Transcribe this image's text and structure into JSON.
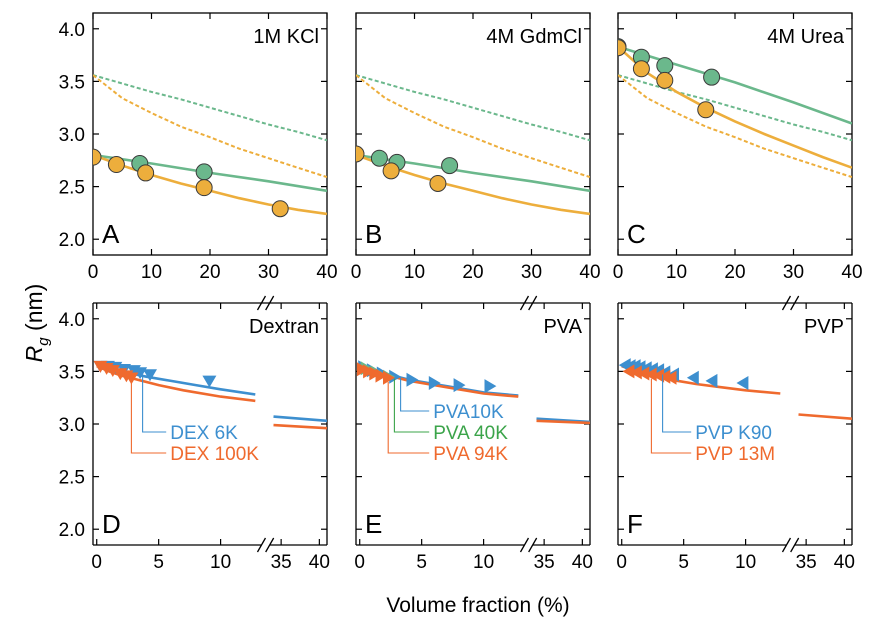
{
  "figure": {
    "shared_ylabel": "R",
    "shared_ylabel_subscript": "g",
    "shared_ylabel_unit": " (nm)",
    "shared_xlabel": "Volume fraction (%)"
  },
  "colors": {
    "green": "#6BB88C",
    "orange": "#EDAE3C",
    "blue": "#3D8FCF",
    "red": "#EF6A2E",
    "legend_green": "#3BA44A"
  },
  "chart_data": [
    {
      "type": "scatter",
      "panel_letter": "A",
      "panel_title": "1M KCl",
      "xlim": [
        0,
        40
      ],
      "ylim": [
        1.85,
        4.15
      ],
      "xticks": [
        "0",
        "10",
        "20",
        "30",
        "40"
      ],
      "xtick_values": [
        0,
        10,
        20,
        30,
        40
      ],
      "yticks": [
        "2.0",
        "2.5",
        "3.0",
        "3.5",
        "4.0"
      ],
      "ytick_values": [
        2.0,
        2.5,
        3.0,
        3.5,
        4.0
      ],
      "series": [
        {
          "color": "green",
          "style": "dashed",
          "kind": "line",
          "x": [
            0,
            5,
            10,
            15,
            20,
            25,
            30,
            35,
            40
          ],
          "y": [
            3.56,
            3.48,
            3.4,
            3.33,
            3.25,
            3.17,
            3.09,
            3.02,
            2.94
          ]
        },
        {
          "color": "orange",
          "style": "dashed",
          "kind": "line",
          "x": [
            0,
            5,
            10,
            15,
            20,
            25,
            30,
            35,
            40
          ],
          "y": [
            3.56,
            3.34,
            3.2,
            3.07,
            2.97,
            2.86,
            2.77,
            2.68,
            2.59
          ]
        },
        {
          "color": "green",
          "style": "solid",
          "kind": "line",
          "x": [
            0,
            10,
            20,
            30,
            40
          ],
          "y": [
            2.8,
            2.72,
            2.63,
            2.55,
            2.46
          ]
        },
        {
          "color": "orange",
          "style": "solid",
          "kind": "line",
          "x": [
            0,
            5,
            10,
            15,
            20,
            25,
            30,
            35,
            40
          ],
          "y": [
            2.8,
            2.7,
            2.61,
            2.53,
            2.46,
            2.39,
            2.33,
            2.28,
            2.24
          ]
        },
        {
          "color": "green",
          "kind": "points",
          "marker": "circle",
          "x": [
            8,
            19
          ],
          "y": [
            2.72,
            2.64
          ]
        },
        {
          "color": "orange",
          "kind": "points",
          "marker": "circle",
          "x": [
            0,
            4,
            9,
            19,
            32
          ],
          "y": [
            2.78,
            2.71,
            2.63,
            2.49,
            2.29
          ]
        }
      ]
    },
    {
      "type": "scatter",
      "panel_letter": "B",
      "panel_title": "4M GdmCl",
      "xlim": [
        0,
        40
      ],
      "ylim": [
        1.85,
        4.15
      ],
      "xticks": [
        "0",
        "10",
        "20",
        "30",
        "40"
      ],
      "xtick_values": [
        0,
        10,
        20,
        30,
        40
      ],
      "yticks": [
        "2.0",
        "2.5",
        "3.0",
        "3.5",
        "4.0"
      ],
      "ytick_values": [
        2.0,
        2.5,
        3.0,
        3.5,
        4.0
      ],
      "series": [
        {
          "color": "green",
          "style": "dashed",
          "kind": "line",
          "x": [
            0,
            5,
            10,
            15,
            20,
            25,
            30,
            35,
            40
          ],
          "y": [
            3.56,
            3.48,
            3.4,
            3.33,
            3.25,
            3.17,
            3.09,
            3.02,
            2.94
          ]
        },
        {
          "color": "orange",
          "style": "dashed",
          "kind": "line",
          "x": [
            0,
            5,
            10,
            15,
            20,
            25,
            30,
            35,
            40
          ],
          "y": [
            3.56,
            3.34,
            3.2,
            3.07,
            2.97,
            2.86,
            2.77,
            2.68,
            2.59
          ]
        },
        {
          "color": "green",
          "style": "solid",
          "kind": "line",
          "x": [
            0,
            10,
            20,
            30,
            40
          ],
          "y": [
            2.8,
            2.72,
            2.63,
            2.55,
            2.46
          ]
        },
        {
          "color": "orange",
          "style": "solid",
          "kind": "line",
          "x": [
            0,
            5,
            10,
            15,
            20,
            25,
            30,
            35,
            40
          ],
          "y": [
            2.8,
            2.7,
            2.61,
            2.53,
            2.46,
            2.39,
            2.33,
            2.28,
            2.24
          ]
        },
        {
          "color": "green",
          "kind": "points",
          "marker": "circle",
          "x": [
            4,
            7,
            16
          ],
          "y": [
            2.77,
            2.73,
            2.7
          ]
        },
        {
          "color": "orange",
          "kind": "points",
          "marker": "circle",
          "x": [
            0,
            6,
            14
          ],
          "y": [
            2.81,
            2.65,
            2.53
          ]
        }
      ]
    },
    {
      "type": "scatter",
      "panel_letter": "C",
      "panel_title": "4M Urea",
      "xlim": [
        0,
        40
      ],
      "ylim": [
        1.85,
        4.15
      ],
      "xticks": [
        "0",
        "10",
        "20",
        "30",
        "40"
      ],
      "xtick_values": [
        0,
        10,
        20,
        30,
        40
      ],
      "yticks": [
        "2.0",
        "2.5",
        "3.0",
        "3.5",
        "4.0"
      ],
      "ytick_values": [
        2.0,
        2.5,
        3.0,
        3.5,
        4.0
      ],
      "series": [
        {
          "color": "green",
          "style": "dashed",
          "kind": "line",
          "x": [
            0,
            5,
            10,
            15,
            20,
            25,
            30,
            35,
            40
          ],
          "y": [
            3.56,
            3.48,
            3.4,
            3.33,
            3.25,
            3.17,
            3.09,
            3.02,
            2.94
          ]
        },
        {
          "color": "orange",
          "style": "dashed",
          "kind": "line",
          "x": [
            0,
            5,
            10,
            15,
            20,
            25,
            30,
            35,
            40
          ],
          "y": [
            3.56,
            3.34,
            3.2,
            3.07,
            2.97,
            2.86,
            2.77,
            2.68,
            2.59
          ]
        },
        {
          "color": "green",
          "style": "solid",
          "kind": "line",
          "x": [
            0,
            10,
            20,
            30,
            40
          ],
          "y": [
            3.83,
            3.66,
            3.49,
            3.3,
            3.1
          ]
        },
        {
          "color": "orange",
          "style": "solid",
          "kind": "line",
          "x": [
            0,
            5,
            10,
            15,
            20,
            25,
            30,
            35,
            40
          ],
          "y": [
            3.83,
            3.58,
            3.4,
            3.25,
            3.12,
            3.0,
            2.89,
            2.78,
            2.68
          ]
        },
        {
          "color": "green",
          "kind": "points",
          "marker": "circle",
          "x": [
            0,
            4,
            8,
            16
          ],
          "y": [
            3.83,
            3.73,
            3.65,
            3.54
          ]
        },
        {
          "color": "orange",
          "kind": "points",
          "marker": "circle",
          "x": [
            0,
            4,
            8,
            15
          ],
          "y": [
            3.82,
            3.62,
            3.51,
            3.23
          ]
        }
      ]
    },
    {
      "type": "scatter",
      "panel_letter": "D",
      "panel_title": "Dextran",
      "broken_axis": true,
      "ylim": [
        1.85,
        4.15
      ],
      "left_segment": {
        "xlim": [
          -0.3,
          13.3
        ]
      },
      "right_segment": {
        "xlim": [
          33.5,
          41
        ]
      },
      "xticks": [
        "0",
        "5",
        "10",
        "35",
        "40"
      ],
      "xtick_values": [
        0,
        5,
        10,
        35,
        40
      ],
      "yticks": [
        "2.0",
        "2.5",
        "3.0",
        "3.5",
        "4.0"
      ],
      "ytick_values": [
        2.0,
        2.5,
        3.0,
        3.5,
        4.0
      ],
      "series": [
        {
          "name": "DEX 6K",
          "color": "blue",
          "style": "solid",
          "kind": "line",
          "x": [
            0,
            2,
            4,
            6,
            8,
            10,
            12.8
          ],
          "y": [
            3.55,
            3.5,
            3.45,
            3.41,
            3.37,
            3.33,
            3.28
          ]
        },
        {
          "name": "DEX 6K",
          "color": "blue",
          "style": "solid",
          "kind": "line",
          "x": [
            34,
            41
          ],
          "y": [
            3.07,
            3.03
          ]
        },
        {
          "name": "DEX 100K",
          "color": "red",
          "style": "solid",
          "kind": "line",
          "x": [
            0,
            1,
            2,
            3,
            5,
            7,
            10,
            12.8
          ],
          "y": [
            3.55,
            3.5,
            3.46,
            3.43,
            3.37,
            3.32,
            3.26,
            3.22
          ]
        },
        {
          "name": "DEX 100K",
          "color": "red",
          "style": "solid",
          "kind": "line",
          "x": [
            34,
            41
          ],
          "y": [
            2.99,
            2.96
          ]
        },
        {
          "name": "DEX 6K",
          "color": "blue",
          "kind": "points",
          "marker": "tri-down",
          "x": [
            0.3,
            0.9,
            1.5,
            2.2,
            3.0,
            3.5,
            4.3,
            9.1
          ],
          "y": [
            3.55,
            3.55,
            3.54,
            3.52,
            3.51,
            3.49,
            3.47,
            3.41
          ]
        },
        {
          "name": "DEX 100K",
          "color": "red",
          "kind": "points",
          "marker": "tri-down",
          "x": [
            0.3,
            0.8,
            1.3,
            1.9,
            2.4,
            2.8
          ],
          "y": [
            3.55,
            3.53,
            3.51,
            3.48,
            3.46,
            3.44
          ]
        }
      ],
      "legend": [
        {
          "label": "DEX 6K",
          "color": "blue",
          "pointer_x": 3.7,
          "pointer_y": 3.47
        },
        {
          "label": "DEX 100K",
          "color": "red",
          "pointer_x": 2.8,
          "pointer_y": 3.4
        }
      ]
    },
    {
      "type": "scatter",
      "panel_letter": "E",
      "panel_title": "PVA",
      "broken_axis": true,
      "ylim": [
        1.85,
        4.15
      ],
      "left_segment": {
        "xlim": [
          -0.3,
          13.3
        ]
      },
      "right_segment": {
        "xlim": [
          33.5,
          41
        ]
      },
      "xticks": [
        "0",
        "5",
        "10",
        "35",
        "40"
      ],
      "xtick_values": [
        0,
        5,
        10,
        35,
        40
      ],
      "yticks": [
        "2.0",
        "2.5",
        "3.0",
        "3.5",
        "4.0"
      ],
      "ytick_values": [
        2.0,
        2.5,
        3.0,
        3.5,
        4.0
      ],
      "series": [
        {
          "name": "PVA10K",
          "color": "blue",
          "style": "solid",
          "kind": "line",
          "x": [
            0,
            2,
            4,
            6,
            8,
            10,
            12.8
          ],
          "y": [
            3.55,
            3.48,
            3.42,
            3.38,
            3.34,
            3.3,
            3.27
          ]
        },
        {
          "name": "PVA10K",
          "color": "blue",
          "style": "solid",
          "kind": "line",
          "x": [
            34,
            41
          ],
          "y": [
            3.05,
            3.02
          ]
        },
        {
          "name": "PVA 94K",
          "color": "red",
          "style": "solid",
          "kind": "line",
          "x": [
            0,
            2,
            4,
            6,
            8,
            10,
            12.8
          ],
          "y": [
            3.55,
            3.47,
            3.41,
            3.37,
            3.33,
            3.29,
            3.26
          ]
        },
        {
          "name": "PVA 94K",
          "color": "red",
          "style": "solid",
          "kind": "line",
          "x": [
            34,
            41
          ],
          "y": [
            3.03,
            3.01
          ]
        },
        {
          "name": "PVA10K",
          "color": "blue",
          "kind": "points",
          "marker": "tri-right",
          "x": [
            0.3,
            1.0,
            1.8,
            2.8,
            4.2,
            6.0,
            8.0,
            10.5
          ],
          "y": [
            3.54,
            3.51,
            3.48,
            3.45,
            3.42,
            3.39,
            3.37,
            3.36
          ]
        },
        {
          "name": "PVA 40K",
          "color": "green",
          "kind": "points",
          "marker": "tri-right",
          "x": [
            0.5,
            1.3,
            2.3
          ],
          "y": [
            3.53,
            3.49,
            3.45
          ]
        },
        {
          "name": "PVA 94K",
          "color": "red",
          "kind": "points",
          "marker": "tri-right",
          "x": [
            0.2,
            0.7,
            1.2,
            1.7,
            2.3
          ],
          "y": [
            3.52,
            3.5,
            3.48,
            3.46,
            3.44
          ]
        }
      ],
      "legend": [
        {
          "label": "PVA10K",
          "color": "blue",
          "pointer_x": 3.3,
          "pointer_y": 3.45
        },
        {
          "label": "PVA 40K",
          "color": "legend_green",
          "pointer_x": 2.8,
          "pointer_y": 3.43
        },
        {
          "label": "PVA 94K",
          "color": "red",
          "pointer_x": 2.3,
          "pointer_y": 3.4
        }
      ]
    },
    {
      "type": "scatter",
      "panel_letter": "F",
      "panel_title": "PVP",
      "broken_axis": true,
      "ylim": [
        1.85,
        4.15
      ],
      "left_segment": {
        "xlim": [
          -0.3,
          13.3
        ]
      },
      "right_segment": {
        "xlim": [
          33.5,
          41
        ]
      },
      "xticks": [
        "0",
        "5",
        "10",
        "35",
        "40"
      ],
      "xtick_values": [
        0,
        5,
        10,
        35,
        40
      ],
      "yticks": [
        "2.0",
        "2.5",
        "3.0",
        "3.5",
        "4.0"
      ],
      "ytick_values": [
        2.0,
        2.5,
        3.0,
        3.5,
        4.0
      ],
      "series": [
        {
          "name": "PVP 13M",
          "color": "red",
          "style": "solid",
          "kind": "line",
          "x": [
            0,
            2,
            4,
            6,
            8,
            10,
            12.8
          ],
          "y": [
            3.55,
            3.47,
            3.42,
            3.38,
            3.35,
            3.32,
            3.29
          ]
        },
        {
          "name": "PVP 13M",
          "color": "red",
          "style": "solid",
          "kind": "line",
          "x": [
            34,
            41
          ],
          "y": [
            3.09,
            3.05
          ]
        },
        {
          "name": "PVP K90",
          "color": "blue",
          "kind": "points",
          "marker": "tri-left",
          "x": [
            0.3,
            0.7,
            1.1,
            1.5,
            2.0,
            2.5,
            3.0,
            3.5,
            4.2,
            5.8,
            7.3,
            9.8
          ],
          "y": [
            3.56,
            3.55,
            3.55,
            3.54,
            3.53,
            3.52,
            3.51,
            3.49,
            3.47,
            3.44,
            3.41,
            3.39
          ]
        },
        {
          "name": "PVP 13M",
          "color": "red",
          "kind": "points",
          "marker": "tri-left",
          "x": [
            0.6,
            1.2,
            1.8,
            2.4,
            3.0,
            3.5,
            4.0
          ],
          "y": [
            3.5,
            3.49,
            3.48,
            3.47,
            3.46,
            3.45,
            3.44
          ]
        }
      ],
      "legend": [
        {
          "label": "PVP K90",
          "color": "blue",
          "pointer_x": 3.3,
          "pointer_y": 3.47
        },
        {
          "label": "PVP 13M",
          "color": "red",
          "pointer_x": 2.4,
          "pointer_y": 3.43
        }
      ]
    }
  ]
}
